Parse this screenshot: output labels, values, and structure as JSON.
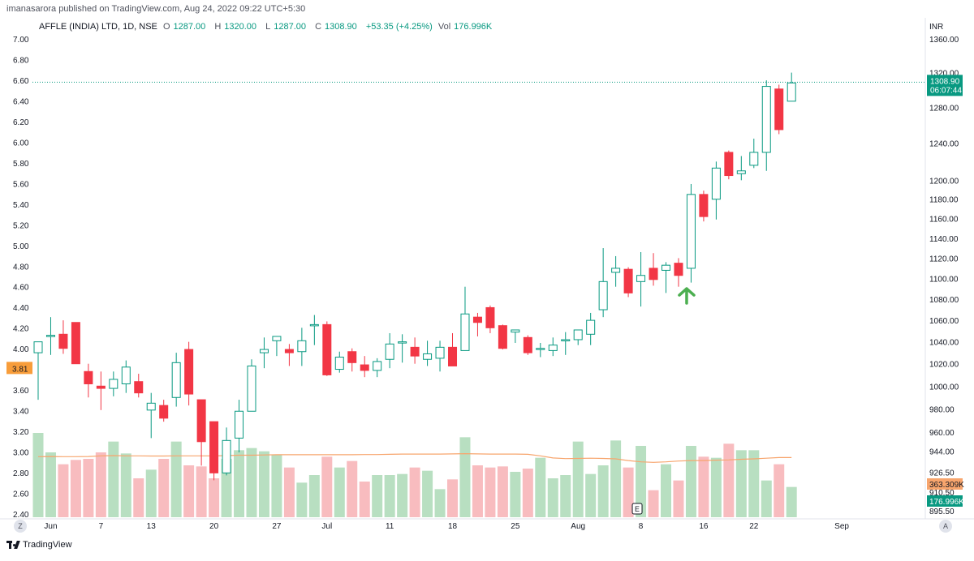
{
  "header": {
    "published_text": "imanasarora published on TradingView.com, Aug 24, 2022 09:22 UTC+5:30"
  },
  "symbol": {
    "name": "AFFLE (INDIA) LTD, 1D, NSE",
    "open_label": "O",
    "open": "1287.00",
    "high_label": "H",
    "high": "1320.00",
    "low_label": "L",
    "low": "1287.00",
    "close_label": "C",
    "close": "1308.90",
    "change": "+53.35 (+4.25%)",
    "vol_label": "Vol",
    "vol": "176.996K"
  },
  "footer": {
    "brand": "TradingView",
    "left_button": "Z",
    "right_button": "A"
  },
  "colors": {
    "up": "#089981",
    "down": "#f23645",
    "vol_up": "#b8dfc1",
    "vol_down": "#f8bcbf",
    "ma": "#f7a56d",
    "arrow": "#4caf50"
  },
  "chart_data": {
    "type": "candlestick",
    "currency": "INR",
    "price_axis_ticks": [
      895.5,
      910.5,
      926.5,
      944.0,
      960.0,
      980.0,
      1000.0,
      1020.0,
      1040.0,
      1060.0,
      1080.0,
      1100.0,
      1120.0,
      1140.0,
      1160.0,
      1180.0,
      1200.0,
      1240.0,
      1280.0,
      1320.0,
      1360.0
    ],
    "price_axis_labels": [
      "895.50",
      "910.50",
      "926.50",
      "944.00",
      "960.00",
      "980.00",
      "1000.00",
      "1020.00",
      "1040.00",
      "1060.00",
      "1080.00",
      "1100.00",
      "1120.00",
      "1140.00",
      "1160.00",
      "1180.00",
      "1200.00",
      "1240.00",
      "1280.00",
      "1320.00",
      "1360.00"
    ],
    "left_axis_labels": [
      "2.40",
      "2.60",
      "2.80",
      "3.00",
      "3.20",
      "3.40",
      "3.60",
      "3.80",
      "4.00",
      "4.20",
      "4.40",
      "4.60",
      "4.80",
      "5.00",
      "5.20",
      "5.40",
      "5.60",
      "5.80",
      "6.00",
      "6.20",
      "6.40",
      "6.60",
      "6.80",
      "7.00"
    ],
    "left_axis_marker": "3.81",
    "x_labels": [
      "Jun",
      "7",
      "13",
      "20",
      "27",
      "Jul",
      "11",
      "18",
      "25",
      "Aug",
      "8",
      "16",
      "22",
      "Sep"
    ],
    "x_label_index": [
      1,
      5,
      9,
      14,
      19,
      23,
      28,
      33,
      38,
      43,
      48,
      53,
      57,
      64
    ],
    "last_price": "1308.90",
    "countdown": "06:07:44",
    "volume_ma_label": "363.309K",
    "volume_label": "176.996K",
    "earnings_marker": "E",
    "candles": [
      {
        "o": 1030,
        "h": 1040,
        "l": 988,
        "c": 1040
      },
      {
        "o": 1045,
        "h": 1063,
        "l": 1028,
        "c": 1046
      },
      {
        "o": 1047,
        "h": 1060,
        "l": 1029,
        "c": 1034
      },
      {
        "o": 1058,
        "h": 1058,
        "l": 1020,
        "c": 1020
      },
      {
        "o": 1013,
        "h": 1020,
        "l": 990,
        "c": 1002
      },
      {
        "o": 1000,
        "h": 1013,
        "l": 979,
        "c": 998
      },
      {
        "o": 998,
        "h": 1013,
        "l": 991,
        "c": 1006
      },
      {
        "o": 1002,
        "h": 1023,
        "l": 994,
        "c": 1017
      },
      {
        "o": 1004,
        "h": 1011,
        "l": 990,
        "c": 994
      },
      {
        "o": 979,
        "h": 994,
        "l": 955,
        "c": 985
      },
      {
        "o": 983,
        "h": 988,
        "l": 969,
        "c": 972
      },
      {
        "o": 990,
        "h": 1030,
        "l": 982,
        "c": 1021
      },
      {
        "o": 1033,
        "h": 1040,
        "l": 983,
        "c": 993
      },
      {
        "o": 988,
        "h": 988,
        "l": 932,
        "c": 952
      },
      {
        "o": 969,
        "h": 969,
        "l": 920,
        "c": 926
      },
      {
        "o": 926,
        "h": 964,
        "l": 924,
        "c": 953
      },
      {
        "o": 955,
        "h": 988,
        "l": 943,
        "c": 978
      },
      {
        "o": 978,
        "h": 1024,
        "l": 978,
        "c": 1018
      },
      {
        "o": 1030,
        "h": 1044,
        "l": 1016,
        "c": 1033
      },
      {
        "o": 1041,
        "h": 1043,
        "l": 1027,
        "c": 1045
      },
      {
        "o": 1033,
        "h": 1038,
        "l": 1018,
        "c": 1030
      },
      {
        "o": 1031,
        "h": 1053,
        "l": 1018,
        "c": 1041
      },
      {
        "o": 1056,
        "h": 1065,
        "l": 1037,
        "c": 1056
      },
      {
        "o": 1056,
        "h": 1059,
        "l": 1009,
        "c": 1010
      },
      {
        "o": 1015,
        "h": 1031,
        "l": 1012,
        "c": 1026
      },
      {
        "o": 1031,
        "h": 1034,
        "l": 1013,
        "c": 1021
      },
      {
        "o": 1019,
        "h": 1027,
        "l": 1008,
        "c": 1014
      },
      {
        "o": 1014,
        "h": 1025,
        "l": 1008,
        "c": 1022
      },
      {
        "o": 1024,
        "h": 1048,
        "l": 1016,
        "c": 1038
      },
      {
        "o": 1040,
        "h": 1047,
        "l": 1021,
        "c": 1040
      },
      {
        "o": 1035,
        "h": 1044,
        "l": 1020,
        "c": 1027
      },
      {
        "o": 1024,
        "h": 1041,
        "l": 1018,
        "c": 1029
      },
      {
        "o": 1025,
        "h": 1041,
        "l": 1013,
        "c": 1035
      },
      {
        "o": 1035,
        "h": 1048,
        "l": 1019,
        "c": 1018
      },
      {
        "o": 1032,
        "h": 1092,
        "l": 1032,
        "c": 1066
      },
      {
        "o": 1063,
        "h": 1067,
        "l": 1045,
        "c": 1058
      },
      {
        "o": 1072,
        "h": 1074,
        "l": 1048,
        "c": 1053
      },
      {
        "o": 1055,
        "h": 1056,
        "l": 1033,
        "c": 1034
      },
      {
        "o": 1049,
        "h": 1051,
        "l": 1039,
        "c": 1051
      },
      {
        "o": 1044,
        "h": 1046,
        "l": 1028,
        "c": 1030
      },
      {
        "o": 1033,
        "h": 1039,
        "l": 1026,
        "c": 1034
      },
      {
        "o": 1032,
        "h": 1044,
        "l": 1027,
        "c": 1037
      },
      {
        "o": 1042,
        "h": 1049,
        "l": 1028,
        "c": 1042
      },
      {
        "o": 1042,
        "h": 1051,
        "l": 1037,
        "c": 1051
      },
      {
        "o": 1047,
        "h": 1067,
        "l": 1037,
        "c": 1060
      },
      {
        "o": 1070,
        "h": 1130,
        "l": 1063,
        "c": 1097
      },
      {
        "o": 1106,
        "h": 1122,
        "l": 1092,
        "c": 1110
      },
      {
        "o": 1109,
        "h": 1111,
        "l": 1082,
        "c": 1086
      },
      {
        "o": 1097,
        "h": 1126,
        "l": 1073,
        "c": 1103
      },
      {
        "o": 1110,
        "h": 1125,
        "l": 1093,
        "c": 1099
      },
      {
        "o": 1108,
        "h": 1116,
        "l": 1086,
        "c": 1113
      },
      {
        "o": 1115,
        "h": 1120,
        "l": 1092,
        "c": 1103
      },
      {
        "o": 1110,
        "h": 1196,
        "l": 1096,
        "c": 1185
      },
      {
        "o": 1185,
        "h": 1189,
        "l": 1157,
        "c": 1162
      },
      {
        "o": 1180,
        "h": 1220,
        "l": 1159,
        "c": 1213
      },
      {
        "o": 1230,
        "h": 1232,
        "l": 1201,
        "c": 1205
      },
      {
        "o": 1207,
        "h": 1226,
        "l": 1200,
        "c": 1210
      },
      {
        "o": 1216,
        "h": 1245,
        "l": 1213,
        "c": 1230
      },
      {
        "o": 1230,
        "h": 1311,
        "l": 1210,
        "c": 1304
      },
      {
        "o": 1301,
        "h": 1306,
        "l": 1250,
        "c": 1255
      },
      {
        "o": 1287,
        "h": 1320,
        "l": 1287,
        "c": 1308
      }
    ],
    "volume_scale_max": 600,
    "volumes": [
      390,
      300,
      245,
      265,
      270,
      300,
      350,
      295,
      180,
      220,
      270,
      350,
      240,
      235,
      180,
      270,
      310,
      320,
      305,
      290,
      230,
      160,
      195,
      280,
      230,
      260,
      165,
      195,
      195,
      200,
      230,
      215,
      130,
      175,
      370,
      240,
      230,
      235,
      210,
      225,
      275,
      180,
      195,
      350,
      200,
      240,
      355,
      230,
      330,
      125,
      245,
      170,
      330,
      280,
      275,
      340,
      310,
      310,
      170,
      245,
      140
    ],
    "volume_ma": [
      280,
      281,
      280,
      280,
      281,
      284,
      285,
      284,
      284,
      283,
      283,
      284,
      284,
      284,
      284,
      285,
      287,
      287,
      288,
      289,
      289,
      289,
      289,
      289,
      289,
      289,
      290,
      290,
      291,
      292,
      292,
      292,
      292,
      293,
      294,
      293,
      292,
      292,
      292,
      291,
      284,
      274,
      271,
      272,
      273,
      272,
      270,
      262,
      256,
      254,
      256,
      260,
      262,
      262,
      264,
      265,
      268,
      270,
      273,
      276,
      276
    ],
    "annotation": {
      "type": "arrow-up",
      "candle_index": 51,
      "price": 1098
    }
  }
}
